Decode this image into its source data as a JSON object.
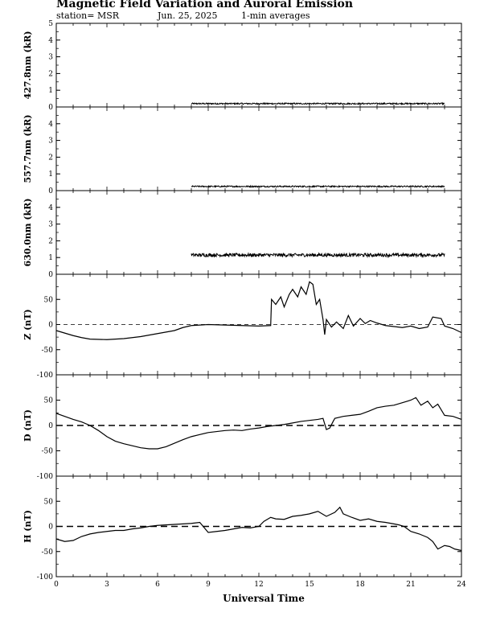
{
  "header": {
    "title": "Magnetic Field Variation and Auroral Emission",
    "station": "station= MSR",
    "date": "Jun. 25, 2025",
    "averaging": "1-min averages"
  },
  "chart_data": {
    "type": "line",
    "xlabel": "Universal Time",
    "x_ticks": [
      0,
      3,
      6,
      9,
      12,
      15,
      18,
      21,
      24
    ],
    "xlim": [
      0,
      24
    ],
    "panels": [
      {
        "id": "p4278",
        "ylabel": "427.8nm (kR)",
        "ylim": [
          0,
          5
        ],
        "y_ticks": [
          0,
          1,
          2,
          3,
          4,
          5
        ],
        "style": "noisy",
        "series": {
          "x": [
            8,
            23
          ],
          "y": [
            0.2,
            0.2
          ],
          "noise": 0.04
        }
      },
      {
        "id": "p5577",
        "ylabel": "557.7nm (kR)",
        "ylim": [
          0,
          5
        ],
        "y_ticks": [
          0,
          1,
          2,
          3,
          4
        ],
        "style": "noisy",
        "series": {
          "x": [
            8,
            23
          ],
          "y": [
            0.25,
            0.25
          ],
          "noise": 0.04
        }
      },
      {
        "id": "p6300",
        "ylabel": "630.0nm (kR)",
        "ylim": [
          0,
          5
        ],
        "y_ticks": [
          0,
          1,
          2,
          3,
          4
        ],
        "style": "noisy",
        "series": {
          "x": [
            8,
            23
          ],
          "y": [
            1.15,
            1.15
          ],
          "noise": 0.1
        }
      },
      {
        "id": "pZ",
        "ylabel": "Z (nT)",
        "ylim": [
          -100,
          100
        ],
        "y_ticks": [
          -100,
          -50,
          0,
          50
        ],
        "zero_line": "dashed-thin",
        "style": "line",
        "series": {
          "x": [
            0,
            0.5,
            1,
            1.5,
            2,
            3,
            4,
            5,
            6,
            7,
            7.5,
            8,
            9,
            10,
            11,
            12,
            12.7,
            12.75,
            13,
            13.3,
            13.5,
            13.8,
            14,
            14.3,
            14.5,
            14.8,
            15,
            15.2,
            15.4,
            15.6,
            15.8,
            15.9,
            16,
            16.3,
            16.6,
            17,
            17.3,
            17.6,
            18,
            18.3,
            18.6,
            19,
            19.5,
            20,
            20.5,
            21,
            21.5,
            22,
            22.3,
            22.8,
            23,
            23.5,
            24
          ],
          "y": [
            -12,
            -17,
            -22,
            -26,
            -29,
            -30,
            -28,
            -24,
            -18,
            -12,
            -6,
            -2,
            0,
            -1,
            -2,
            -3,
            -2,
            50,
            40,
            55,
            35,
            60,
            70,
            55,
            75,
            60,
            85,
            80,
            40,
            50,
            10,
            -20,
            10,
            -5,
            5,
            -8,
            18,
            -3,
            12,
            2,
            8,
            3,
            -2,
            -4,
            -6,
            -3,
            -8,
            -5,
            15,
            12,
            -3,
            -8,
            -16
          ]
        }
      },
      {
        "id": "pD",
        "ylabel": "D (nT)",
        "ylim": [
          -100,
          100
        ],
        "y_ticks": [
          -100,
          -50,
          0,
          50
        ],
        "zero_line": "dashed-thick",
        "style": "line",
        "series": {
          "x": [
            0,
            0.5,
            1,
            1.5,
            2,
            2.5,
            3,
            3.5,
            4,
            4.5,
            5,
            5.5,
            6,
            6.5,
            7,
            7.5,
            8,
            8.5,
            9,
            9.5,
            10,
            10.5,
            11,
            11.5,
            12,
            12.5,
            13,
            13.5,
            14,
            14.5,
            15,
            15.5,
            15.8,
            16,
            16.2,
            16.4,
            16.5,
            17,
            17.5,
            18,
            18.5,
            19,
            19.5,
            20,
            20.5,
            21,
            21.3,
            21.6,
            22,
            22.3,
            22.6,
            23,
            23.5,
            24
          ],
          "y": [
            24,
            18,
            12,
            7,
            0,
            -10,
            -22,
            -31,
            -36,
            -40,
            -44,
            -46,
            -46,
            -42,
            -35,
            -28,
            -22,
            -18,
            -14,
            -12,
            -10,
            -9,
            -10,
            -7,
            -5,
            -2,
            0,
            2,
            5,
            8,
            10,
            12,
            14,
            -8,
            -5,
            8,
            14,
            18,
            20,
            22,
            28,
            35,
            38,
            40,
            45,
            50,
            55,
            40,
            48,
            35,
            42,
            20,
            18,
            12
          ]
        }
      },
      {
        "id": "pH",
        "ylabel": "H (nT)",
        "ylim": [
          -100,
          100
        ],
        "y_ticks": [
          -100,
          -50,
          0,
          50
        ],
        "zero_line": "dashed-thick",
        "style": "line",
        "series": {
          "x": [
            0,
            0.5,
            1,
            1.5,
            2,
            2.5,
            3,
            3.5,
            4,
            4.5,
            5,
            5.5,
            6,
            6.5,
            7,
            7.5,
            8,
            8.5,
            9,
            9.5,
            10,
            10.5,
            11,
            11.5,
            12,
            12.3,
            12.7,
            13,
            13.5,
            14,
            14.5,
            15,
            15.5,
            16,
            16.5,
            16.8,
            17,
            17.5,
            18,
            18.5,
            19,
            19.5,
            20,
            20.3,
            20.6,
            21,
            21.5,
            22,
            22.3,
            22.6,
            23,
            23.3,
            23.6,
            24
          ],
          "y": [
            -25,
            -30,
            -28,
            -20,
            -15,
            -12,
            -10,
            -8,
            -8,
            -5,
            -3,
            0,
            2,
            3,
            4,
            5,
            6,
            8,
            -12,
            -10,
            -8,
            -5,
            -2,
            -3,
            0,
            10,
            18,
            15,
            14,
            20,
            22,
            25,
            30,
            20,
            28,
            38,
            25,
            18,
            12,
            15,
            10,
            8,
            5,
            3,
            0,
            -10,
            -15,
            -22,
            -30,
            -45,
            -38,
            -40,
            -45,
            -48
          ]
        }
      }
    ]
  }
}
